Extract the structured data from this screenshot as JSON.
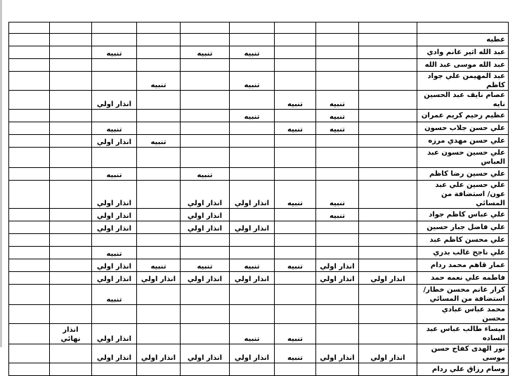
{
  "table": {
    "header": [
      "",
      "",
      "",
      "",
      "",
      "",
      "",
      "",
      "",
      ""
    ],
    "rows": [
      {
        "name": "عطيه",
        "cells": [
          "",
          "",
          "",
          "",
          "",
          "",
          "",
          "",
          ""
        ]
      },
      {
        "name": "عبد الله اثير غانم وادي",
        "cells": [
          "",
          "",
          "",
          "تنبيه",
          "تنبيه",
          "",
          "تنبيه",
          "",
          ""
        ]
      },
      {
        "name": "عبد الله موسى عبد الله",
        "cells": [
          "",
          "",
          "",
          "",
          "",
          "",
          "",
          "",
          ""
        ]
      },
      {
        "name": "عبد المهيمن علي جواد كاظم",
        "cells": [
          "",
          "",
          "",
          "تنبيه",
          "",
          "تنبيه",
          "",
          "",
          ""
        ]
      },
      {
        "name": "عصام نايف عبد الحسين نايه",
        "cells": [
          "",
          "تنبيه",
          "تنبيه",
          "",
          "",
          "",
          "انذار اولي",
          "",
          ""
        ]
      },
      {
        "name": "عظيم رحيم كريم عمران",
        "cells": [
          "",
          "تنبيه",
          "",
          "تنبيه",
          "",
          "",
          "",
          "",
          ""
        ]
      },
      {
        "name": "علي حسن جلاب حسون",
        "cells": [
          "",
          "تنبيه",
          "تنبيه",
          "",
          "",
          "",
          "تنبيه",
          "",
          ""
        ]
      },
      {
        "name": "علي حسن مهدي مرزه",
        "cells": [
          "",
          "",
          "",
          "",
          "",
          "تنبيه",
          "انذار اولي",
          "",
          ""
        ]
      },
      {
        "name": "علي حسين حسون عبد العباس",
        "tall": true,
        "cells": [
          "",
          "",
          "",
          "",
          "",
          "",
          "",
          "",
          ""
        ]
      },
      {
        "name": "علي حسين رضا كاظم",
        "cells": [
          "",
          "",
          "",
          "",
          "تنبيه",
          "",
          "تنبيه",
          "",
          ""
        ]
      },
      {
        "name": "علي حسين علي عبد عون/ استضافة من المسائي",
        "tall": true,
        "cells": [
          "",
          "تنبيه",
          "تنبيه",
          "انذار اولي",
          "انذار اولي",
          "",
          "انذار اولي",
          "",
          ""
        ]
      },
      {
        "name": "علي عباس كاظم جواد",
        "cells": [
          "",
          "تنبيه",
          "",
          "",
          "انذار اولي",
          "",
          "انذار اولي",
          "",
          ""
        ]
      },
      {
        "name": "علي فاضل جبار حسين",
        "cells": [
          "",
          "",
          "",
          "انذار اولي",
          "انذار اولي",
          "",
          "انذار اولي",
          "",
          ""
        ]
      },
      {
        "name": "علي محسن كاظم عبد",
        "cells": [
          "",
          "",
          "",
          "",
          "",
          "",
          "",
          "",
          ""
        ]
      },
      {
        "name": "علي ناجح غالب بدري",
        "cells": [
          "",
          "",
          "",
          "",
          "",
          "",
          "تنبيه",
          "",
          ""
        ]
      },
      {
        "name": "عمار قاهم محمد ردام",
        "cells": [
          "",
          "انذار اولي",
          "تنبيه",
          "تنبيه",
          "تنبيه",
          "تنبيه",
          "انذار اولي",
          "",
          ""
        ]
      },
      {
        "name": "فاطمه علي نعمه حمد",
        "cells": [
          "انذار اولي",
          "انذار اولي",
          "",
          "انذار اولي",
          "انذار اولي",
          "انذار اولي",
          "انذار اولي",
          "",
          ""
        ]
      },
      {
        "name": "كرار غانم محسن خطار/ استضافة من المسائي",
        "tall": true,
        "cells": [
          "",
          "",
          "",
          "",
          "",
          "",
          "تنبيه",
          "",
          ""
        ]
      },
      {
        "name": "محمد عباس عبادي محسن",
        "cells": [
          "",
          "",
          "",
          "",
          "",
          "",
          "",
          "",
          ""
        ]
      },
      {
        "name": "ميساء طالب عباس عبد الساده",
        "tall": true,
        "cells": [
          "",
          "",
          "تنبيه",
          "تنبيه",
          "",
          "",
          "انذار اولي",
          "انذار نهائي",
          ""
        ]
      },
      {
        "name": "نور الهدى كفاح حسن موسى",
        "cells": [
          "انذار اولي",
          "انذار اولي",
          "تنبيه",
          "انذار اولي",
          "انذار اولي",
          "انذار اولي",
          "انذار اولي",
          "",
          ""
        ]
      },
      {
        "name": "وسام رزاق علي ردام",
        "cells": [
          "",
          "",
          "",
          "",
          "",
          "",
          "",
          "",
          ""
        ]
      }
    ]
  }
}
